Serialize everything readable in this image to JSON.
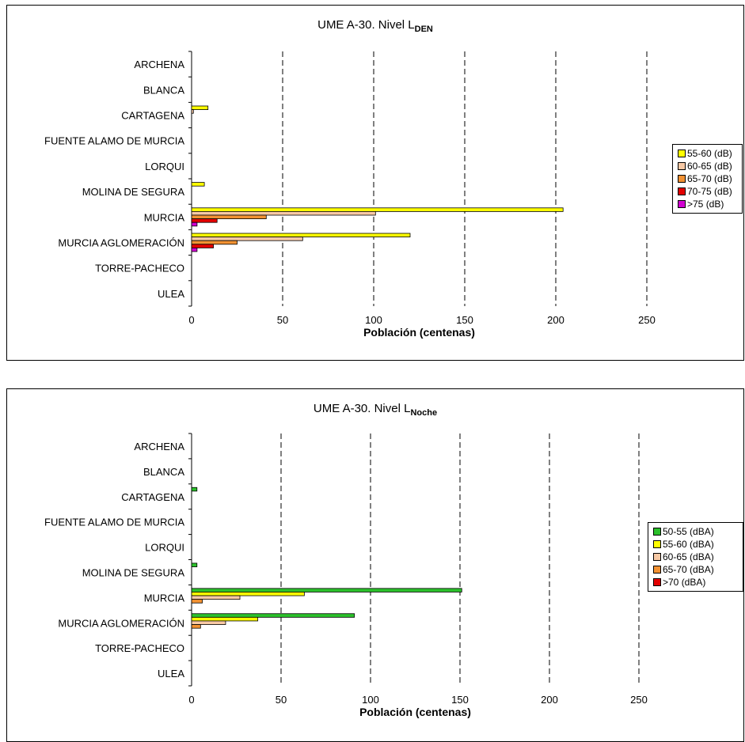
{
  "chart_data": [
    {
      "type": "bar",
      "orientation": "horizontal",
      "title_main": "UME A-30. Nivel L",
      "title_sub": "DEN",
      "xlabel": "Población (centenas)",
      "ylabel": "",
      "xlim": [
        0,
        250
      ],
      "xticks": [
        0,
        50,
        100,
        150,
        200,
        250
      ],
      "grid": "vertical-dashed",
      "legend_position": "right",
      "categories": [
        "ARCHENA",
        "BLANCA",
        "CARTAGENA",
        "FUENTE ALAMO DE MURCIA",
        "LORQUI",
        "MOLINA DE SEGURA",
        "MURCIA",
        "MURCIA AGLOMERACIÓN",
        "TORRE-PACHECO",
        "ULEA"
      ],
      "series": [
        {
          "name": "55-60 (dB)",
          "color": "#ffff00",
          "values": [
            0,
            0,
            9,
            0,
            0,
            7,
            204,
            120,
            0,
            0
          ]
        },
        {
          "name": "60-65 (dB)",
          "color": "#f7c9a5",
          "values": [
            0,
            0,
            1,
            0,
            0,
            0,
            101,
            61,
            0,
            0
          ]
        },
        {
          "name": "65-70 (dB)",
          "color": "#f29233",
          "values": [
            0,
            0,
            0,
            0,
            0,
            0,
            41,
            25,
            0,
            0
          ]
        },
        {
          "name": "70-75 (dB)",
          "color": "#e30000",
          "values": [
            0,
            0,
            0,
            0,
            0,
            0,
            14,
            12,
            0,
            0
          ]
        },
        {
          "name": ">75 (dB)",
          "color": "#d100d1",
          "values": [
            0,
            0,
            0,
            0,
            0,
            0,
            3,
            3,
            0,
            0
          ]
        }
      ]
    },
    {
      "type": "bar",
      "orientation": "horizontal",
      "title_main": "UME A-30. Nivel L",
      "title_sub": "Noche",
      "xlabel": "Población (centenas)",
      "ylabel": "",
      "xlim": [
        0,
        250
      ],
      "xticks": [
        0,
        50,
        100,
        150,
        200,
        250
      ],
      "grid": "vertical-dashed",
      "legend_position": "right",
      "categories": [
        "ARCHENA",
        "BLANCA",
        "CARTAGENA",
        "FUENTE ALAMO DE MURCIA",
        "LORQUI",
        "MOLINA DE SEGURA",
        "MURCIA",
        "MURCIA AGLOMERACIÓN",
        "TORRE-PACHECO",
        "ULEA"
      ],
      "series": [
        {
          "name": "50-55 (dBA)",
          "color": "#2bc02b",
          "values": [
            0,
            0,
            3,
            0,
            0,
            3,
            151,
            91,
            0,
            0
          ]
        },
        {
          "name": "55-60 (dBA)",
          "color": "#ffff00",
          "values": [
            0,
            0,
            0,
            0,
            0,
            0,
            63,
            37,
            0,
            0
          ]
        },
        {
          "name": "60-65 (dBA)",
          "color": "#f7c9a5",
          "values": [
            0,
            0,
            0,
            0,
            0,
            0,
            27,
            19,
            0,
            0
          ]
        },
        {
          "name": "65-70 (dBA)",
          "color": "#f29233",
          "values": [
            0,
            0,
            0,
            0,
            0,
            0,
            6,
            5,
            0,
            0
          ]
        },
        {
          "name": ">70 (dBA)",
          "color": "#e30000",
          "values": [
            0,
            0,
            0,
            0,
            0,
            0,
            0,
            0,
            0,
            0
          ]
        }
      ]
    }
  ]
}
